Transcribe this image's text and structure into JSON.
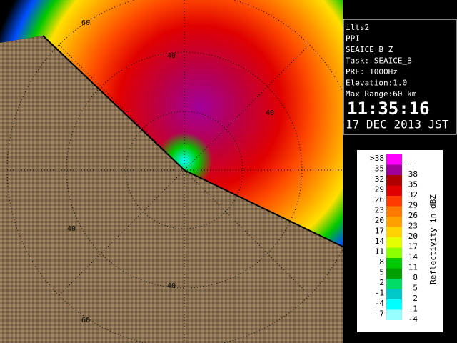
{
  "info": {
    "lines": [
      "ilts2",
      "PPI",
      "SEAICE_B_Z",
      "Task: SEAICE_B",
      "PRF: 1000Hz",
      "Elevation:1.0",
      "Max Range:60 km"
    ],
    "time": "11:35:16",
    "date": "17 DEC 2013 JST"
  },
  "ring_labels": [
    "60",
    "40",
    "40",
    "40",
    "40",
    "60"
  ],
  "legend": {
    "title": "Reflectivity in dBZ",
    "rows": [
      {
        "low": ">38",
        "high": "---",
        "color": "#ff00ff"
      },
      {
        "low": "35",
        "high": "38",
        "color": "#a0009a"
      },
      {
        "low": "32",
        "high": "35",
        "color": "#b00000"
      },
      {
        "low": "29",
        "high": "32",
        "color": "#e00000"
      },
      {
        "low": "26",
        "high": "29",
        "color": "#ff3c00"
      },
      {
        "low": "23",
        "high": "26",
        "color": "#ff7800"
      },
      {
        "low": "20",
        "high": "23",
        "color": "#ffa000"
      },
      {
        "low": "17",
        "high": "20",
        "color": "#ffd200"
      },
      {
        "low": "14",
        "high": "17",
        "color": "#e6ff00"
      },
      {
        "low": "11",
        "high": "14",
        "color": "#8cff00"
      },
      {
        "low": "8",
        "high": "11",
        "color": "#00c800"
      },
      {
        "low": "5",
        "high": "8",
        "color": "#00a000"
      },
      {
        "low": "2",
        "high": "5",
        "color": "#00dc64"
      },
      {
        "low": "-1",
        "high": "2",
        "color": "#00c8c8"
      },
      {
        "low": "-4",
        "high": "-1",
        "color": "#00ffff"
      },
      {
        "low": "-7",
        "high": "-4",
        "color": "#96ffff"
      }
    ]
  }
}
